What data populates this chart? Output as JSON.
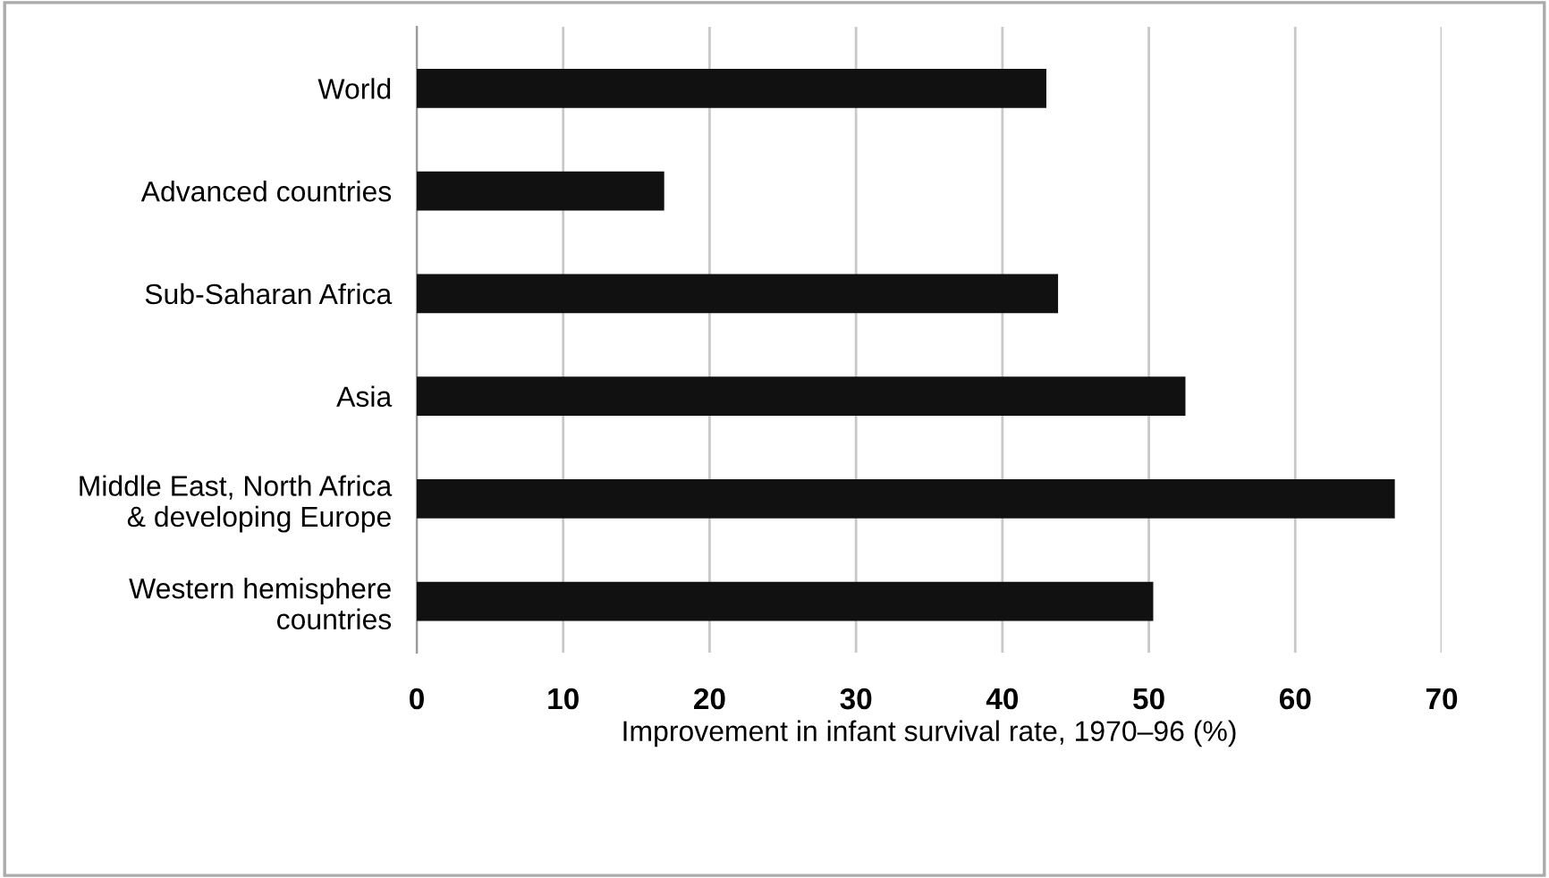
{
  "chart_data": {
    "type": "bar",
    "orientation": "horizontal",
    "categories": [
      "World",
      "Advanced countries",
      "Sub-Saharan Africa",
      "Asia",
      "Middle East, North Africa\n& developing Europe",
      "Western hemisphere\ncountries"
    ],
    "values": [
      43.0,
      16.9,
      43.8,
      52.5,
      66.8,
      50.3
    ],
    "color": "#111111",
    "xlabel": "Improvement in infant survival rate, 1970–96 (%)",
    "xlim": [
      0,
      70
    ],
    "xticks": [
      0,
      10,
      20,
      30,
      40,
      50,
      60,
      70
    ],
    "grid": "x"
  }
}
